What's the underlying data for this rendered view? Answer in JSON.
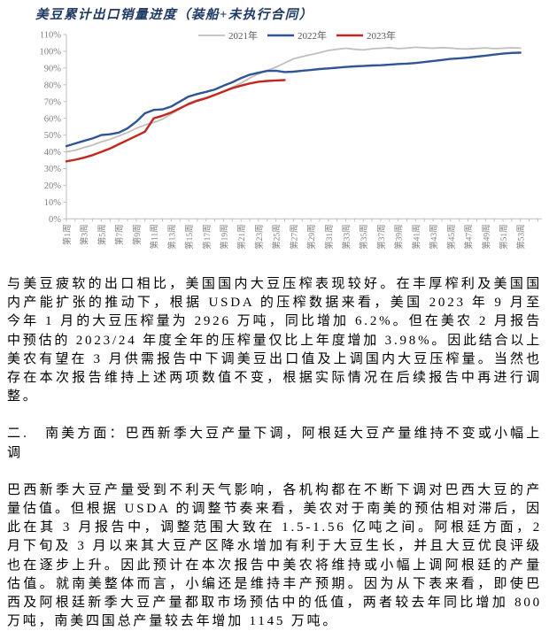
{
  "chart": {
    "title": "美豆累计出口销量进度（装船+未执行合同）"
  },
  "chart_data": {
    "type": "line",
    "title": "美豆累计出口销量进度（装船+未执行合同）",
    "ylim": [
      0,
      110
    ],
    "y_ticks": [
      0,
      10,
      20,
      30,
      40,
      50,
      60,
      70,
      80,
      90,
      100,
      110
    ],
    "y_tick_format": "percent",
    "x_unit": "week",
    "x_range": [
      1,
      53
    ],
    "x_tick_labels": [
      "第1周",
      "第3周",
      "第5周",
      "第7周",
      "第9周",
      "第11周",
      "第13周",
      "第15周",
      "第17周",
      "第19周",
      "第21周",
      "第23周",
      "第25周",
      "第27周",
      "第29周",
      "第31周",
      "第33周",
      "第35周",
      "第37周",
      "第39周",
      "第41周",
      "第43周",
      "第45周",
      "第47周",
      "第49周",
      "第51周",
      "第53周"
    ],
    "legend_position": "top-center",
    "grid": false,
    "axis_color": "#BFBFBF",
    "tick_label_color": "#7F7F7F",
    "legend_text_color": "#595959",
    "series": [
      {
        "name": "2021年",
        "color": "#BFBFBF",
        "width": 1.8,
        "values": [
          40,
          41,
          42.5,
          44,
          46,
          47.5,
          49.5,
          51.5,
          54,
          56,
          57.5,
          59.5,
          62.5,
          65.5,
          69,
          71,
          72.5,
          74,
          76,
          78.5,
          81,
          84,
          86.5,
          88.5,
          90.5,
          93,
          95.5,
          96.8,
          98,
          99.2,
          100.5,
          101.2,
          101.8,
          101.2,
          100.8,
          101.5,
          101.8,
          102.2,
          101.6,
          101.9,
          102.4,
          102.1,
          101.8,
          102.2,
          101.9,
          101.5,
          101.4,
          101.7,
          102,
          101.6,
          101.8,
          102.1,
          101.9
        ]
      },
      {
        "name": "2022年",
        "color": "#2F5597",
        "width": 2.4,
        "values": [
          43.4,
          45,
          46.5,
          48,
          50,
          50.5,
          51.5,
          54,
          58,
          63,
          65,
          65.3,
          67,
          70,
          73,
          74.5,
          75.8,
          77.2,
          79.5,
          81.5,
          84,
          86,
          87.2,
          88.3,
          88.4,
          87.6,
          87.8,
          88.4,
          88.8,
          89.4,
          89.8,
          90.2,
          90.6,
          91,
          91.2,
          91.5,
          91.7,
          92,
          92.4,
          92.6,
          93,
          93.6,
          94.2,
          94.8,
          95.4,
          95.8,
          96.2,
          96.8,
          97.4,
          98,
          98.6,
          99,
          99.2
        ]
      },
      {
        "name": "2023年",
        "color": "#C3261D",
        "width": 2.4,
        "values": [
          34.3,
          35.3,
          36.5,
          38,
          40,
          42,
          44.5,
          47,
          49.5,
          52,
          60,
          61.5,
          63.5,
          66,
          68.5,
          70.5,
          72,
          74,
          76,
          78,
          79.5,
          80.8,
          81.8,
          82.3,
          82.6,
          82.8
        ]
      }
    ]
  },
  "body": {
    "paragraph1": "与美豆疲软的出口相比，美国国内大豆压榨表现较好。在丰厚榨利及美国国内产能扩张的推动下，根据 USDA 的压榨数据来看，美国 2023 年 9 月至今年 1 月的大豆压榨量为 2926 万吨，同比增加 6.2%。但在美农 2 月报告中预估的 2023/24 年度全年的压榨量仅比上年度增加 3.98%。因此结合以上美农有望在 3 月供需报告中下调美豆出口值及上调国内大豆压榨量。当然也存在本次报告维持上述两项数值不变，根据实际情况在后续报告中再进行调整。",
    "heading": "二.　南美方面：巴西新季大豆产量下调，阿根廷大豆产量维持不变或小幅上调",
    "paragraph2": "巴西新季大豆产量受到不利天气影响，各机构都在不断下调对巴西大豆的产量估值。但根据 USDA 的调整节奏来看，美农对于南美的预估相对滞后，因此在其 3 月报告中，调整范围大致在 1.5-1.56 亿吨之间。阿根廷方面，2 月下旬及 3 月以来其大豆产区降水增加有利于大豆生长，并且大豆优良评级也在逐步上升。因此预计在本次报告中美农将维持或小幅上调阿根廷的产量估值。就南美整体而言，小编还是维持丰产预期。因为从下表来看，即使巴西及阿根廷新季大豆产量都取市场预估中的低值，两者较去年同比增加 800 万吨，南美四国总产量较去年增加 1145 万吨。"
  }
}
